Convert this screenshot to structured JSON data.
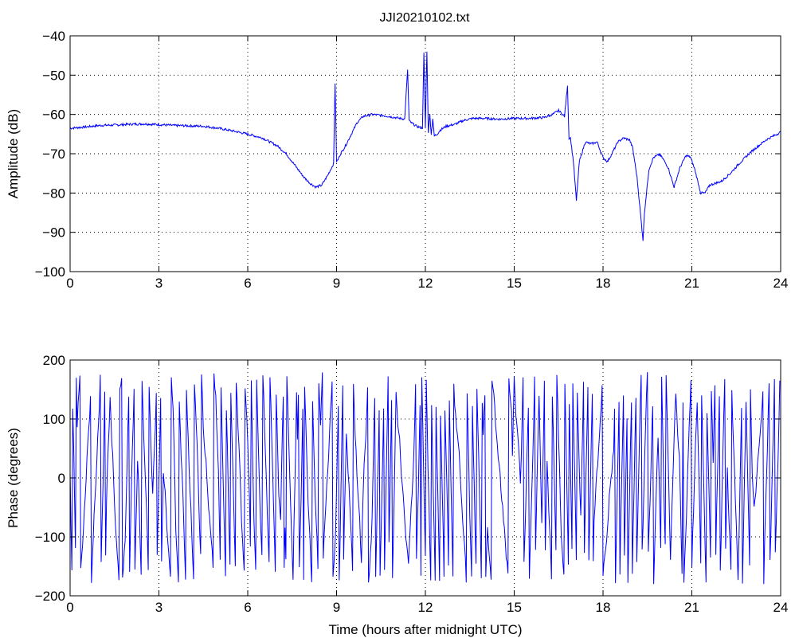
{
  "title": "JJI20210102.txt",
  "chart_data": [
    {
      "type": "line",
      "title": "JJI20210102.txt",
      "xlabel": "",
      "ylabel": "Amplitude (dB)",
      "xlim": [
        0,
        24
      ],
      "ylim": [
        -100,
        -40
      ],
      "xticks": [
        0,
        3,
        6,
        9,
        12,
        15,
        18,
        21,
        24
      ],
      "yticks": [
        -100,
        -90,
        -80,
        -70,
        -60,
        -50,
        -40
      ],
      "grid": true,
      "color": "#0000ff",
      "series": [
        {
          "x": [
            0,
            0.5,
            1,
            1.5,
            2,
            2.5,
            3,
            3.5,
            4,
            4.5,
            5,
            5.5,
            6,
            6.5,
            7,
            7.3,
            7.6,
            7.9,
            8.1,
            8.3,
            8.5,
            8.7,
            8.9,
            8.95,
            9.0,
            9.05,
            9.1,
            9.3,
            9.5,
            9.7,
            9.9,
            10.2,
            10.6,
            11.0,
            11.3,
            11.4,
            11.45,
            11.5,
            11.7,
            11.9,
            11.95,
            12.0,
            12.05,
            12.1,
            12.15,
            12.2,
            12.25,
            12.3,
            12.4,
            12.5,
            12.7,
            13.0,
            13.3,
            13.6,
            14.0,
            14.5,
            15.0,
            15.5,
            16.0,
            16.3,
            16.5,
            16.7,
            16.8,
            16.85,
            16.9,
            17.0,
            17.1,
            17.2,
            17.4,
            17.6,
            17.8,
            18.0,
            18.15,
            18.3,
            18.5,
            18.7,
            18.9,
            19.0,
            19.15,
            19.3,
            19.35,
            19.4,
            19.55,
            19.7,
            19.9,
            20.0,
            20.2,
            20.4,
            20.6,
            20.8,
            20.95,
            21.1,
            21.3,
            21.45,
            21.6,
            21.8,
            22.0,
            22.3,
            22.6,
            23.0,
            23.5,
            24.0
          ],
          "y": [
            -63.5,
            -63.2,
            -62.8,
            -62.7,
            -62.5,
            -62.4,
            -62.6,
            -62.8,
            -62.9,
            -63.0,
            -63.5,
            -64.2,
            -65.0,
            -66.0,
            -68.0,
            -70.0,
            -73.0,
            -76.0,
            -77.5,
            -78.5,
            -78.0,
            -75.5,
            -72.5,
            -52.0,
            -72.0,
            -71.5,
            -70.5,
            -68.0,
            -65.0,
            -62.0,
            -60.5,
            -60.0,
            -60.3,
            -60.8,
            -61.2,
            -48.5,
            -61.5,
            -62.0,
            -63.0,
            -63.5,
            -44.5,
            -63.5,
            -43.8,
            -64.5,
            -60.0,
            -65.0,
            -61.0,
            -65.5,
            -65.0,
            -64.0,
            -63.0,
            -62.5,
            -61.5,
            -61.0,
            -61.0,
            -61.2,
            -61.0,
            -61.0,
            -60.8,
            -60.0,
            -59.0,
            -60.5,
            -52.5,
            -66.0,
            -66.0,
            -72.0,
            -82.0,
            -72.0,
            -67.0,
            -67.5,
            -67.0,
            -71.0,
            -72.0,
            -70.0,
            -67.0,
            -66.0,
            -66.5,
            -68.5,
            -76.0,
            -88.0,
            -92.0,
            -85.0,
            -74.0,
            -71.0,
            -70.2,
            -71.0,
            -73.5,
            -78.5,
            -73.5,
            -70.5,
            -70.8,
            -74.0,
            -80.0,
            -80.0,
            -78.0,
            -77.5,
            -77.0,
            -75.0,
            -72.5,
            -69.5,
            -66.5,
            -64.5
          ]
        }
      ]
    },
    {
      "type": "line",
      "title": "",
      "xlabel": "Time (hours after midnight UTC)",
      "ylabel": "Phase (degrees)",
      "xlim": [
        0,
        24
      ],
      "ylim": [
        -200,
        200
      ],
      "xticks": [
        0,
        3,
        6,
        9,
        12,
        15,
        18,
        21,
        24
      ],
      "yticks": [
        -200,
        -100,
        0,
        100,
        200
      ],
      "grid": true,
      "color": "#0000ff",
      "series": [
        {
          "x_step": 0.03,
          "values_range": [
            -180,
            180
          ],
          "description_of_pattern": "rapidly wrapping phase between -180 and 180 degrees throughout the day"
        }
      ]
    }
  ]
}
